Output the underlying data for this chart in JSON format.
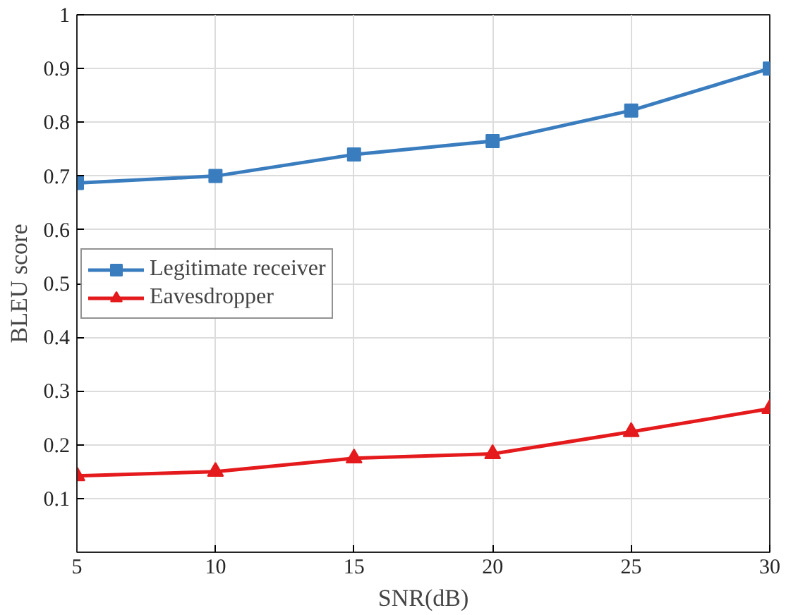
{
  "chart_data": {
    "type": "line",
    "xlabel": "SNR(dB)",
    "ylabel": "BLEU score",
    "x": [
      5,
      10,
      15,
      20,
      25,
      30
    ],
    "series": [
      {
        "name": "Legitimate receiver",
        "color": "#3a7dbf",
        "values": [
          0.687,
          0.7,
          0.74,
          0.765,
          0.822,
          0.9
        ],
        "marker": "square"
      },
      {
        "name": "Eavesdropper",
        "color": "#e41a1c",
        "values": [
          0.142,
          0.15,
          0.175,
          0.183,
          0.224,
          0.267
        ],
        "marker": "triangle"
      }
    ],
    "xlim": [
      5,
      30
    ],
    "xticks": [
      5,
      10,
      15,
      20,
      25,
      30
    ],
    "ylim": [
      0,
      1
    ],
    "yticks": [
      0.1,
      0.2,
      0.3,
      0.4,
      0.5,
      0.6,
      0.7,
      0.8,
      0.9,
      1
    ],
    "grid": true,
    "legend": "left",
    "line_style": "solid"
  }
}
